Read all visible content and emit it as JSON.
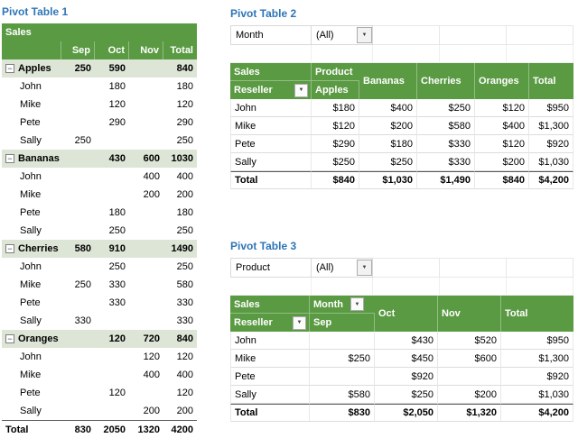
{
  "colors": {
    "header_green": "#5A9A43",
    "band_green": "#DDE5D6",
    "title_blue": "#2E75B6"
  },
  "icons": {
    "collapse": "−",
    "dropdown": "▼"
  },
  "table1": {
    "title": "Pivot Table 1",
    "header": "Sales",
    "columns": [
      "",
      "Sep",
      "Oct",
      "Nov",
      "Total"
    ],
    "rows": [
      {
        "type": "group",
        "label": "Apples",
        "values": [
          "250",
          "590",
          "",
          "840"
        ]
      },
      {
        "type": "detail",
        "label": "John",
        "values": [
          "",
          "180",
          "",
          "180"
        ]
      },
      {
        "type": "detail",
        "label": "Mike",
        "values": [
          "",
          "120",
          "",
          "120"
        ]
      },
      {
        "type": "detail",
        "label": "Pete",
        "values": [
          "",
          "290",
          "",
          "290"
        ]
      },
      {
        "type": "detail",
        "label": "Sally",
        "values": [
          "250",
          "",
          "",
          "250"
        ]
      },
      {
        "type": "group",
        "label": "Bananas",
        "values": [
          "",
          "430",
          "600",
          "1030"
        ]
      },
      {
        "type": "detail",
        "label": "John",
        "values": [
          "",
          "",
          "400",
          "400"
        ]
      },
      {
        "type": "detail",
        "label": "Mike",
        "values": [
          "",
          "",
          "200",
          "200"
        ]
      },
      {
        "type": "detail",
        "label": "Pete",
        "values": [
          "",
          "180",
          "",
          "180"
        ]
      },
      {
        "type": "detail",
        "label": "Sally",
        "values": [
          "",
          "250",
          "",
          "250"
        ]
      },
      {
        "type": "group",
        "label": "Cherries",
        "values": [
          "580",
          "910",
          "",
          "1490"
        ]
      },
      {
        "type": "detail",
        "label": "John",
        "values": [
          "",
          "250",
          "",
          "250"
        ]
      },
      {
        "type": "detail",
        "label": "Mike",
        "values": [
          "250",
          "330",
          "",
          "580"
        ]
      },
      {
        "type": "detail",
        "label": "Pete",
        "values": [
          "",
          "330",
          "",
          "330"
        ]
      },
      {
        "type": "detail",
        "label": "Sally",
        "values": [
          "330",
          "",
          "",
          "330"
        ]
      },
      {
        "type": "group",
        "label": "Oranges",
        "values": [
          "",
          "120",
          "720",
          "840"
        ]
      },
      {
        "type": "detail",
        "label": "John",
        "values": [
          "",
          "",
          "120",
          "120"
        ]
      },
      {
        "type": "detail",
        "label": "Mike",
        "values": [
          "",
          "",
          "400",
          "400"
        ]
      },
      {
        "type": "detail",
        "label": "Pete",
        "values": [
          "",
          "120",
          "",
          "120"
        ]
      },
      {
        "type": "detail",
        "label": "Sally",
        "values": [
          "",
          "",
          "200",
          "200"
        ]
      },
      {
        "type": "total",
        "label": "Total",
        "values": [
          "830",
          "2050",
          "1320",
          "4200"
        ]
      }
    ]
  },
  "table2": {
    "title": "Pivot Table 2",
    "filter": {
      "label": "Month",
      "value": "(All)"
    },
    "corner": "Sales",
    "col_field": "Product",
    "row_field": "Reseller",
    "columns": [
      "Apples",
      "Bananas",
      "Cherries",
      "Oranges",
      "Total"
    ],
    "rows": [
      {
        "type": "data",
        "label": "John",
        "values": [
          "$180",
          "$400",
          "$250",
          "$120",
          "$950"
        ]
      },
      {
        "type": "data",
        "label": "Mike",
        "values": [
          "$120",
          "$200",
          "$580",
          "$400",
          "$1,300"
        ]
      },
      {
        "type": "data",
        "label": "Pete",
        "values": [
          "$290",
          "$180",
          "$330",
          "$120",
          "$920"
        ]
      },
      {
        "type": "data",
        "label": "Sally",
        "values": [
          "$250",
          "$250",
          "$330",
          "$200",
          "$1,030"
        ]
      },
      {
        "type": "total",
        "label": "Total",
        "values": [
          "$840",
          "$1,030",
          "$1,490",
          "$840",
          "$4,200"
        ]
      }
    ]
  },
  "table3": {
    "title": "Pivot Table 3",
    "filter": {
      "label": "Product",
      "value": "(All)"
    },
    "corner": "Sales",
    "col_field": "Month",
    "row_field": "Reseller",
    "columns": [
      "Sep",
      "Oct",
      "Nov",
      "Total"
    ],
    "rows": [
      {
        "type": "data",
        "label": "John",
        "values": [
          "",
          "$430",
          "$520",
          "$950"
        ]
      },
      {
        "type": "data",
        "label": "Mike",
        "values": [
          "$250",
          "$450",
          "$600",
          "$1,300"
        ]
      },
      {
        "type": "data",
        "label": "Pete",
        "values": [
          "",
          "$920",
          "",
          "$920"
        ]
      },
      {
        "type": "data",
        "label": "Sally",
        "values": [
          "$580",
          "$250",
          "$200",
          "$1,030"
        ]
      },
      {
        "type": "total",
        "label": "Total",
        "values": [
          "$830",
          "$2,050",
          "$1,320",
          "$4,200"
        ]
      }
    ]
  }
}
